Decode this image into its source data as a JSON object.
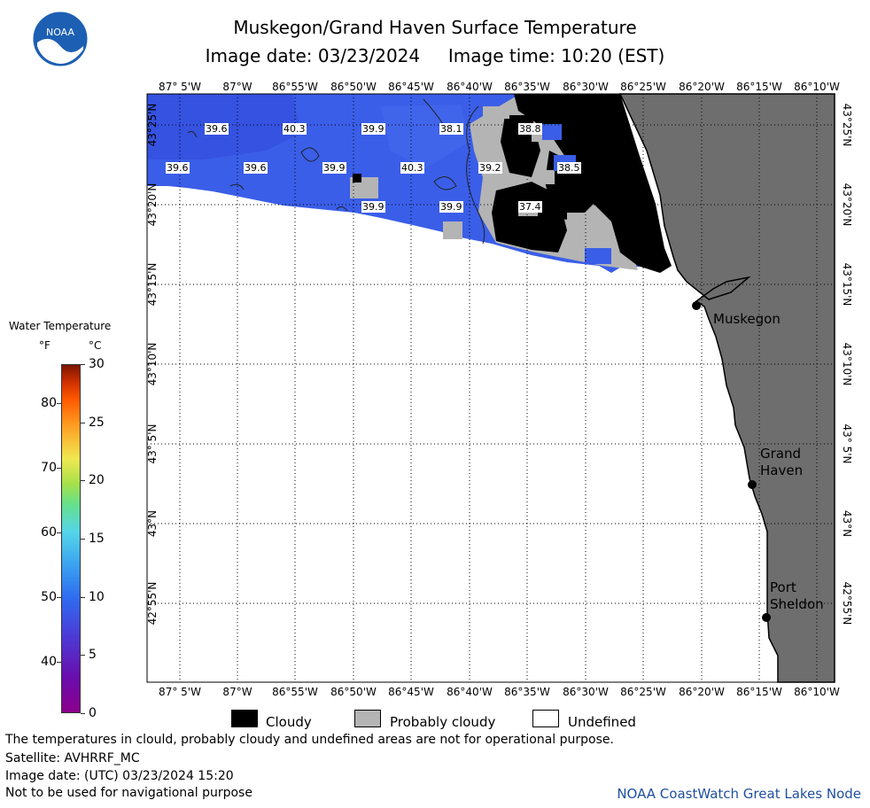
{
  "title": "Muskegon/Grand Haven Surface Temperature",
  "subtitle": "Image date: 03/23/2024     Image time: 10:20 (EST)",
  "logo_text": "NOAA",
  "longitude_labels": [
    "87° 5'W",
    "87°W",
    "86°55'W",
    "86°50'W",
    "86°45'W",
    "86°40'W",
    "86°35'W",
    "86°30'W",
    "86°25'W",
    "86°20'W",
    "86°15'W",
    "86°10'W"
  ],
  "latitude_labels": [
    "43°25'N",
    "43°20'N",
    "43°15'N",
    "43°10'N",
    "43° 5'N",
    "43°N",
    "42°55'N"
  ],
  "temperature_labels": [
    "39.6",
    "40.3",
    "39.9",
    "38.1",
    "38.8",
    "39.6",
    "39.6",
    "39.9",
    "40.3",
    "39.2",
    "38.5",
    "39.9",
    "39.9",
    "37.4"
  ],
  "places": [
    {
      "name": "Muskegon"
    },
    {
      "name": "Grand\nHaven"
    },
    {
      "name": "Port\nSheldon"
    }
  ],
  "legend": {
    "title": "Water Temperature",
    "unit_f": "°F",
    "unit_c": "°C",
    "f_ticks": [
      "80",
      "70",
      "60",
      "50",
      "40"
    ],
    "c_ticks": [
      "30",
      "25",
      "20",
      "15",
      "10",
      "5",
      "0"
    ],
    "colors": {
      "land": "#6e6e6e",
      "water": "#3a5ee8",
      "cloudy": "#000000",
      "probably_cloudy": "#b4b4b4",
      "undefined": "#ffffff"
    }
  },
  "category_legend": [
    "Cloudy",
    "Probably cloudy",
    "Undefined"
  ],
  "footer": [
    "The temperatures in clould, probably cloudy and undefined areas are not for operational purpose.",
    "Satellite: AVHRRF_MC",
    "Image date: (UTC) 03/23/2024  15:20",
    "Not to be used for navigational purpose"
  ],
  "credit": "NOAA CoastWatch Great Lakes Node"
}
